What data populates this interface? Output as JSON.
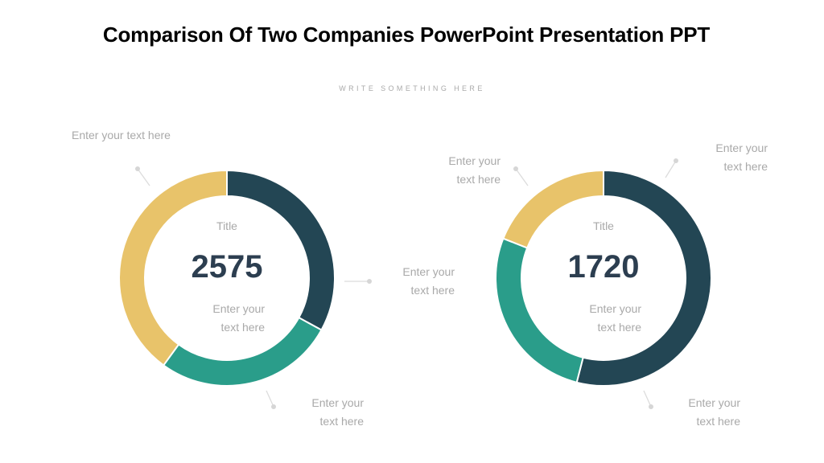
{
  "header": {
    "title": "Comparison Of Two Companies PowerPoint Presentation PPT",
    "subtitle": "WRITE SOMETHING HERE"
  },
  "colors": {
    "dark": "#234654",
    "teal": "#2a9d8a",
    "yellow": "#e8c36a",
    "center_value": "#2c3e50",
    "label": "#a9a9a9",
    "leader": "#d6d6d6"
  },
  "left_chart": {
    "title": "Title",
    "value": "2575",
    "desc_line1": "Enter your",
    "desc_line2": "text here",
    "label_top_left": "Enter your text here",
    "label_right_line1": "Enter your",
    "label_right_line2": "text here",
    "label_bottom_line1": "Enter your",
    "label_bottom_line2": "text here"
  },
  "right_chart": {
    "title": "Title",
    "value": "1720",
    "desc_line1": "Enter your",
    "desc_line2": "text here",
    "label_top_left_line1": "Enter your",
    "label_top_left_line2": "text here",
    "label_top_right_line1": "Enter your",
    "label_top_right_line2": "text here",
    "label_bottom_line1": "Enter your",
    "label_bottom_line2": "text here"
  },
  "chart_data": [
    {
      "type": "pie",
      "variant": "donut",
      "title": "2575",
      "categories": [
        "Dark",
        "Teal",
        "Yellow"
      ],
      "values": [
        33,
        27,
        40
      ],
      "colors": [
        "#234654",
        "#2a9d8a",
        "#e8c36a"
      ],
      "center_label": "Title",
      "start_angle": "top, clockwise"
    },
    {
      "type": "pie",
      "variant": "donut",
      "title": "1720",
      "categories": [
        "Dark",
        "Teal",
        "Yellow"
      ],
      "values": [
        54,
        27,
        19
      ],
      "colors": [
        "#234654",
        "#2a9d8a",
        "#e8c36a"
      ],
      "center_label": "Title",
      "start_angle": "top, clockwise"
    }
  ]
}
